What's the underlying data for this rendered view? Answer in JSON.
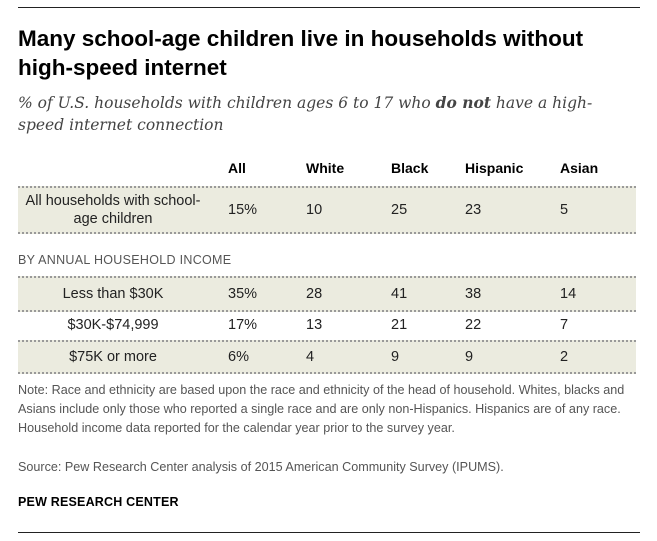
{
  "title": "Many school-age children live in households without high-speed internet",
  "subtitle_parts": {
    "before": "% of U.S. households with children ages 6 to 17 who ",
    "emphasis": "do not",
    "after": " have a high-speed internet connection"
  },
  "chart_data": {
    "type": "table",
    "columns": [
      "All",
      "White",
      "Black",
      "Hispanic",
      "Asian"
    ],
    "section_label": "BY ANNUAL HOUSEHOLD INCOME",
    "rows": [
      {
        "label": "All households with school-age children",
        "values": [
          "15%",
          "10",
          "25",
          "23",
          "5"
        ]
      },
      {
        "label": "Less than $30K",
        "values": [
          "35%",
          "28",
          "41",
          "38",
          "14"
        ]
      },
      {
        "label": "$30K-$74,999",
        "values": [
          "17%",
          "13",
          "21",
          "22",
          "7"
        ]
      },
      {
        "label": "$75K or more",
        "values": [
          "6%",
          "4",
          "9",
          "9",
          "2"
        ]
      }
    ]
  },
  "note": "Note: Race and ethnicity are based upon the race and ethnicity of the head of household. Whites, blacks and Asians include only those who reported a single race and are only non-Hispanics. Hispanics are of any race. Household income data reported for the calendar year prior to the survey year.",
  "source": "Source: Pew Research Center analysis of 2015 American Community Survey (IPUMS).",
  "brand": "PEW RESEARCH CENTER",
  "colors": {
    "row_shade": "#ebebdf",
    "rule": "#222222",
    "note_text": "#555555"
  }
}
